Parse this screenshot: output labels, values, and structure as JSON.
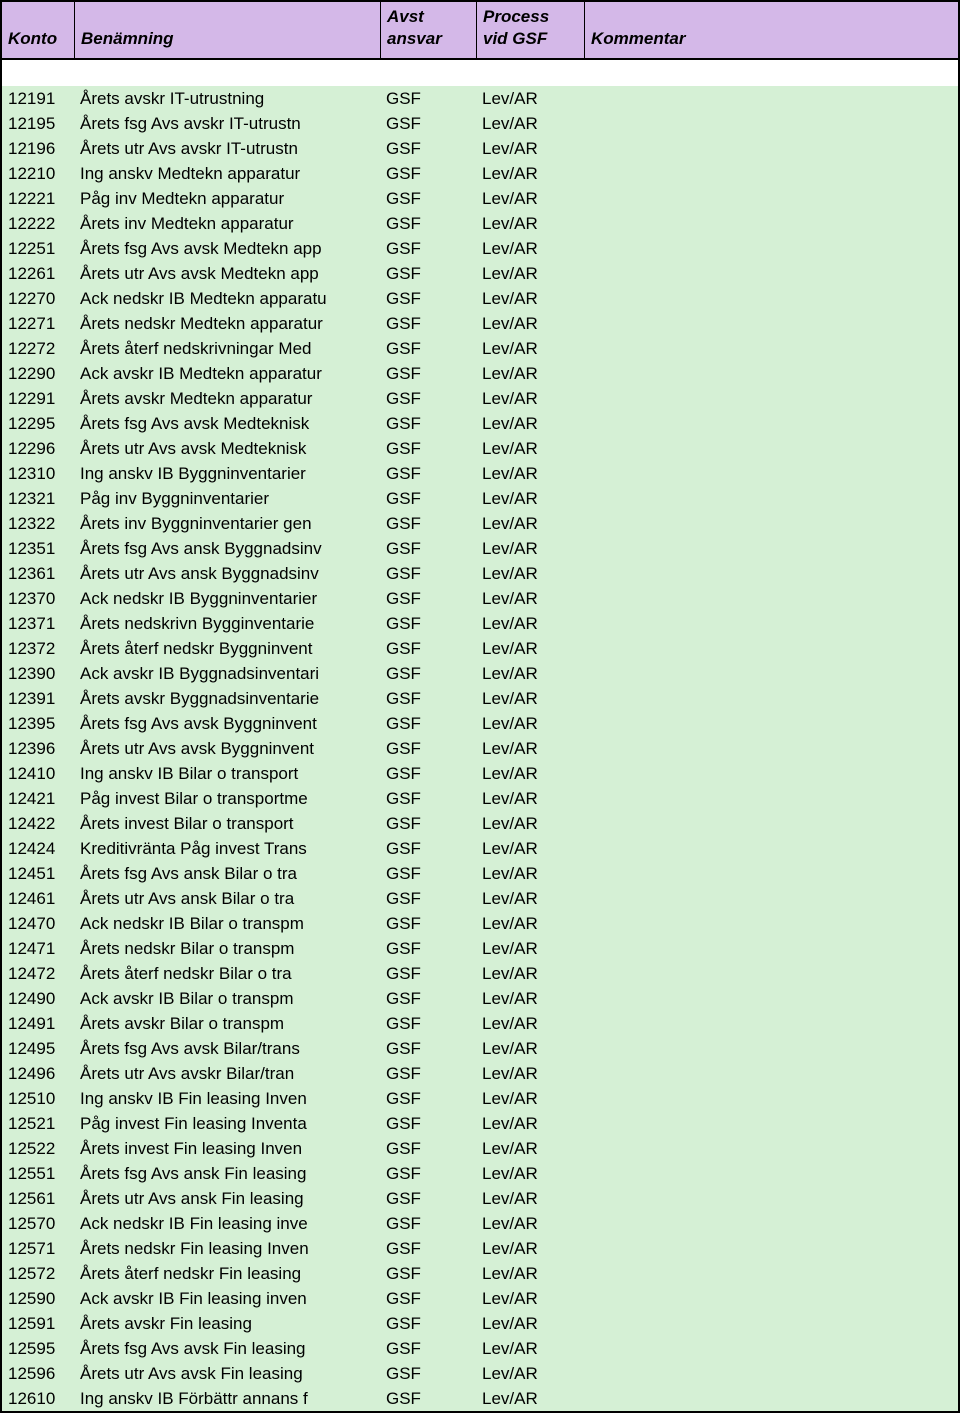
{
  "colors": {
    "header_bg": "#d4b8e8",
    "body_bg": "#d5f0d5",
    "border": "#000000",
    "spacer_bg": "#ffffff"
  },
  "columns": [
    {
      "key": "konto",
      "label_line1": "",
      "label_line2": "Konto"
    },
    {
      "key": "benamning",
      "label_line1": "",
      "label_line2": "Benämning"
    },
    {
      "key": "avst",
      "label_line1": "Avst",
      "label_line2": "ansvar"
    },
    {
      "key": "process",
      "label_line1": "Process",
      "label_line2": "vid GSF"
    },
    {
      "key": "kommentar",
      "label_line1": "",
      "label_line2": "Kommentar"
    }
  ],
  "rows": [
    {
      "konto": "12191",
      "benamning": "Årets avskr IT-utrustning",
      "avst": "GSF",
      "process": "Lev/AR",
      "kommentar": ""
    },
    {
      "konto": "12195",
      "benamning": "Årets fsg Avs avskr IT-utrustn",
      "avst": "GSF",
      "process": "Lev/AR",
      "kommentar": ""
    },
    {
      "konto": "12196",
      "benamning": "Årets utr Avs avskr IT-utrustn",
      "avst": "GSF",
      "process": "Lev/AR",
      "kommentar": ""
    },
    {
      "konto": "12210",
      "benamning": "Ing anskv Medtekn apparatur",
      "avst": "GSF",
      "process": "Lev/AR",
      "kommentar": ""
    },
    {
      "konto": "12221",
      "benamning": "Påg inv Medtekn apparatur",
      "avst": "GSF",
      "process": "Lev/AR",
      "kommentar": ""
    },
    {
      "konto": "12222",
      "benamning": "Årets inv Medtekn apparatur",
      "avst": "GSF",
      "process": "Lev/AR",
      "kommentar": ""
    },
    {
      "konto": "12251",
      "benamning": "Årets fsg Avs avsk Medtekn app",
      "avst": "GSF",
      "process": "Lev/AR",
      "kommentar": ""
    },
    {
      "konto": "12261",
      "benamning": "Årets utr Avs avsk Medtekn app",
      "avst": "GSF",
      "process": "Lev/AR",
      "kommentar": ""
    },
    {
      "konto": "12270",
      "benamning": "Ack nedskr IB Medtekn apparatu",
      "avst": "GSF",
      "process": "Lev/AR",
      "kommentar": ""
    },
    {
      "konto": "12271",
      "benamning": "Årets nedskr Medtekn apparatur",
      "avst": "GSF",
      "process": "Lev/AR",
      "kommentar": ""
    },
    {
      "konto": "12272",
      "benamning": "Årets återf nedskrivningar Med",
      "avst": "GSF",
      "process": "Lev/AR",
      "kommentar": ""
    },
    {
      "konto": "12290",
      "benamning": "Ack avskr IB Medtekn apparatur",
      "avst": "GSF",
      "process": "Lev/AR",
      "kommentar": ""
    },
    {
      "konto": "12291",
      "benamning": "Årets avskr Medtekn apparatur",
      "avst": "GSF",
      "process": "Lev/AR",
      "kommentar": ""
    },
    {
      "konto": "12295",
      "benamning": "Årets fsg Avs avsk Medteknisk",
      "avst": "GSF",
      "process": "Lev/AR",
      "kommentar": ""
    },
    {
      "konto": "12296",
      "benamning": "Årets utr Avs avsk Medteknisk",
      "avst": "GSF",
      "process": "Lev/AR",
      "kommentar": ""
    },
    {
      "konto": "12310",
      "benamning": "Ing anskv IB Byggninventarier",
      "avst": "GSF",
      "process": "Lev/AR",
      "kommentar": ""
    },
    {
      "konto": "12321",
      "benamning": "Påg inv Byggninventarier",
      "avst": "GSF",
      "process": "Lev/AR",
      "kommentar": ""
    },
    {
      "konto": "12322",
      "benamning": "Årets inv Byggninventarier gen",
      "avst": "GSF",
      "process": "Lev/AR",
      "kommentar": ""
    },
    {
      "konto": "12351",
      "benamning": "Årets fsg Avs ansk Byggnadsinv",
      "avst": "GSF",
      "process": "Lev/AR",
      "kommentar": ""
    },
    {
      "konto": "12361",
      "benamning": "Årets utr Avs ansk Byggnadsinv",
      "avst": "GSF",
      "process": "Lev/AR",
      "kommentar": ""
    },
    {
      "konto": "12370",
      "benamning": "Ack nedskr IB Byggninventarier",
      "avst": "GSF",
      "process": "Lev/AR",
      "kommentar": ""
    },
    {
      "konto": "12371",
      "benamning": "Årets nedskrivn Bygginventarie",
      "avst": "GSF",
      "process": "Lev/AR",
      "kommentar": ""
    },
    {
      "konto": "12372",
      "benamning": "Årets återf nedskr Byggninvent",
      "avst": "GSF",
      "process": "Lev/AR",
      "kommentar": ""
    },
    {
      "konto": "12390",
      "benamning": "Ack avskr IB Byggnadsinventari",
      "avst": "GSF",
      "process": "Lev/AR",
      "kommentar": ""
    },
    {
      "konto": "12391",
      "benamning": "Årets avskr Byggnadsinventarie",
      "avst": "GSF",
      "process": "Lev/AR",
      "kommentar": ""
    },
    {
      "konto": "12395",
      "benamning": "Årets fsg Avs avsk Byggninvent",
      "avst": "GSF",
      "process": "Lev/AR",
      "kommentar": ""
    },
    {
      "konto": "12396",
      "benamning": "Årets utr Avs avsk Byggninvent",
      "avst": "GSF",
      "process": "Lev/AR",
      "kommentar": ""
    },
    {
      "konto": "12410",
      "benamning": "Ing anskv IB Bilar o transport",
      "avst": "GSF",
      "process": "Lev/AR",
      "kommentar": ""
    },
    {
      "konto": "12421",
      "benamning": "Påg invest Bilar o transportme",
      "avst": "GSF",
      "process": "Lev/AR",
      "kommentar": ""
    },
    {
      "konto": "12422",
      "benamning": "Årets invest Bilar o transport",
      "avst": "GSF",
      "process": "Lev/AR",
      "kommentar": ""
    },
    {
      "konto": "12424",
      "benamning": "Kreditivränta Påg invest Trans",
      "avst": "GSF",
      "process": "Lev/AR",
      "kommentar": ""
    },
    {
      "konto": "12451",
      "benamning": "Årets fsg Avs ansk Bilar o tra",
      "avst": "GSF",
      "process": "Lev/AR",
      "kommentar": ""
    },
    {
      "konto": "12461",
      "benamning": "Årets utr Avs ansk Bilar o tra",
      "avst": "GSF",
      "process": "Lev/AR",
      "kommentar": ""
    },
    {
      "konto": "12470",
      "benamning": "Ack nedskr IB Bilar o transpm",
      "avst": "GSF",
      "process": "Lev/AR",
      "kommentar": ""
    },
    {
      "konto": "12471",
      "benamning": "Årets nedskr Bilar o transpm",
      "avst": "GSF",
      "process": "Lev/AR",
      "kommentar": ""
    },
    {
      "konto": "12472",
      "benamning": "Årets återf nedskr Bilar o tra",
      "avst": "GSF",
      "process": "Lev/AR",
      "kommentar": ""
    },
    {
      "konto": "12490",
      "benamning": "Ack avskr IB Bilar o transpm",
      "avst": "GSF",
      "process": "Lev/AR",
      "kommentar": ""
    },
    {
      "konto": "12491",
      "benamning": "Årets avskr Bilar o transpm",
      "avst": "GSF",
      "process": "Lev/AR",
      "kommentar": ""
    },
    {
      "konto": "12495",
      "benamning": "Årets fsg Avs avsk Bilar/trans",
      "avst": "GSF",
      "process": "Lev/AR",
      "kommentar": ""
    },
    {
      "konto": "12496",
      "benamning": "Årets utr Avs avskr Bilar/tran",
      "avst": "GSF",
      "process": "Lev/AR",
      "kommentar": ""
    },
    {
      "konto": "12510",
      "benamning": "Ing anskv IB Fin leasing Inven",
      "avst": "GSF",
      "process": "Lev/AR",
      "kommentar": ""
    },
    {
      "konto": "12521",
      "benamning": "Påg invest Fin leasing Inventa",
      "avst": "GSF",
      "process": "Lev/AR",
      "kommentar": ""
    },
    {
      "konto": "12522",
      "benamning": "Årets invest Fin leasing Inven",
      "avst": "GSF",
      "process": "Lev/AR",
      "kommentar": ""
    },
    {
      "konto": "12551",
      "benamning": "Årets fsg Avs ansk Fin leasing",
      "avst": "GSF",
      "process": "Lev/AR",
      "kommentar": ""
    },
    {
      "konto": "12561",
      "benamning": "Årets utr Avs ansk Fin leasing",
      "avst": "GSF",
      "process": "Lev/AR",
      "kommentar": ""
    },
    {
      "konto": "12570",
      "benamning": "Ack nedskr IB Fin leasing inve",
      "avst": "GSF",
      "process": "Lev/AR",
      "kommentar": ""
    },
    {
      "konto": "12571",
      "benamning": "Årets nedskr Fin leasing Inven",
      "avst": "GSF",
      "process": "Lev/AR",
      "kommentar": ""
    },
    {
      "konto": "12572",
      "benamning": "Årets återf nedskr Fin leasing",
      "avst": "GSF",
      "process": "Lev/AR",
      "kommentar": ""
    },
    {
      "konto": "12590",
      "benamning": "Ack avskr IB Fin leasing inven",
      "avst": "GSF",
      "process": "Lev/AR",
      "kommentar": ""
    },
    {
      "konto": "12591",
      "benamning": "Årets avskr Fin leasing",
      "avst": "GSF",
      "process": "Lev/AR",
      "kommentar": ""
    },
    {
      "konto": "12595",
      "benamning": "Årets fsg Avs avsk Fin leasing",
      "avst": "GSF",
      "process": "Lev/AR",
      "kommentar": ""
    },
    {
      "konto": "12596",
      "benamning": "Årets utr Avs avsk Fin leasing",
      "avst": "GSF",
      "process": "Lev/AR",
      "kommentar": ""
    },
    {
      "konto": "12610",
      "benamning": "Ing anskv IB Förbättr annans f",
      "avst": "GSF",
      "process": "Lev/AR",
      "kommentar": ""
    }
  ]
}
